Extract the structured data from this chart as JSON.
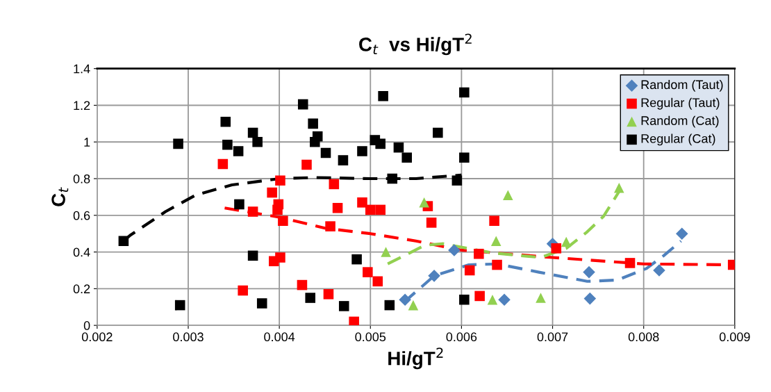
{
  "chart_data": {
    "type": "scatter",
    "title": "C$_{t}$  vs Hi/gT$^{2}$",
    "xlabel": "Hi/gT$^{2}$",
    "ylabel": "C$_{t}$",
    "xlim": [
      0.002,
      0.009
    ],
    "xticks": [
      0.002,
      0.003,
      0.004,
      0.005,
      0.006,
      0.007,
      0.008,
      0.009
    ],
    "ylim": [
      0,
      1.4
    ],
    "yticks": [
      0,
      0.2,
      0.4,
      0.6,
      0.8,
      1,
      1.2,
      1.4
    ],
    "grid": true,
    "legend": "top right",
    "series": [
      {
        "name": "Random (Taut)",
        "color": "#4f81bd",
        "marker": "diamond",
        "x": [
          0.00538,
          0.0057,
          0.00592,
          0.00647,
          0.007,
          0.0074,
          0.00741,
          0.00817,
          0.00842
        ],
        "values": [
          0.14,
          0.27,
          0.41,
          0.14,
          0.445,
          0.29,
          0.146,
          0.3,
          0.5
        ]
      },
      {
        "name": "Regular (Taut)",
        "color": "#ff0000",
        "marker": "square",
        "x": [
          0.00338,
          0.0043,
          0.00401,
          0.00392,
          0.00399,
          0.00398,
          0.00371,
          0.00404,
          0.00456,
          0.00401,
          0.00394,
          0.0036,
          0.00425,
          0.00454,
          0.0046,
          0.00464,
          0.00491,
          0.005,
          0.00511,
          0.00563,
          0.00567,
          0.00636,
          0.00619,
          0.00609,
          0.00639,
          0.00497,
          0.00508,
          0.00482,
          0.0062,
          0.00704,
          0.00785,
          0.00898
        ],
        "values": [
          0.88,
          0.876,
          0.79,
          0.724,
          0.66,
          0.63,
          0.62,
          0.57,
          0.54,
          0.37,
          0.35,
          0.19,
          0.22,
          0.17,
          0.77,
          0.64,
          0.67,
          0.63,
          0.63,
          0.65,
          0.56,
          0.57,
          0.39,
          0.3,
          0.33,
          0.29,
          0.24,
          0.02,
          0.16,
          0.42,
          0.34,
          0.33
        ]
      },
      {
        "name": "Random (Cat)",
        "color": "#92d050",
        "marker": "triangle",
        "x": [
          0.00517,
          0.00559,
          0.00547,
          0.00634,
          0.00638,
          0.00651,
          0.00687,
          0.00715,
          0.00773
        ],
        "values": [
          0.4,
          0.67,
          0.11,
          0.14,
          0.46,
          0.71,
          0.15,
          0.455,
          0.75
        ]
      },
      {
        "name": "Regular (Cat)",
        "color": "#000000",
        "marker": "square",
        "x": [
          0.00229,
          0.00289,
          0.00291,
          0.00341,
          0.00343,
          0.00355,
          0.00356,
          0.00371,
          0.00376,
          0.00371,
          0.00381,
          0.00426,
          0.00437,
          0.00442,
          0.00439,
          0.00451,
          0.00434,
          0.00514,
          0.00603,
          0.00574,
          0.00505,
          0.00511,
          0.00531,
          0.0054,
          0.00603,
          0.00491,
          0.0047,
          0.00524,
          0.00595,
          0.00485,
          0.00471,
          0.00521,
          0.00603
        ],
        "values": [
          0.46,
          0.99,
          0.11,
          1.11,
          0.985,
          0.95,
          0.66,
          1.05,
          1.0,
          0.38,
          0.12,
          1.205,
          1.1,
          1.03,
          1.0,
          0.94,
          0.15,
          1.25,
          1.27,
          1.05,
          1.01,
          0.99,
          0.97,
          0.915,
          0.915,
          0.95,
          0.9,
          0.8,
          0.79,
          0.36,
          0.105,
          0.11,
          0.14
        ]
      },
      {
        "type": "line",
        "color": "#4f81bd",
        "line_style": "dashed",
        "x": [
          0.00537,
          0.0057,
          0.00608,
          0.00639,
          0.00685,
          0.00738,
          0.00771,
          0.00803,
          0.00822,
          0.00841
        ],
        "values": [
          0.127,
          0.27,
          0.33,
          0.335,
          0.29,
          0.24,
          0.247,
          0.31,
          0.38,
          0.46
        ]
      },
      {
        "type": "line",
        "color": "#ff0000",
        "line_style": "dashed",
        "x": [
          0.0034,
          0.004,
          0.0045,
          0.005,
          0.0055,
          0.006,
          0.0065,
          0.007,
          0.008,
          0.009
        ],
        "values": [
          0.64,
          0.59,
          0.53,
          0.5,
          0.46,
          0.41,
          0.39,
          0.37,
          0.335,
          0.33
        ]
      },
      {
        "type": "line",
        "color": "#92d050",
        "line_style": "dashed",
        "x": [
          0.00519,
          0.0056,
          0.0058,
          0.00634,
          0.00687,
          0.00715,
          0.00738,
          0.00756,
          0.00773
        ],
        "values": [
          0.335,
          0.437,
          0.445,
          0.395,
          0.37,
          0.42,
          0.51,
          0.595,
          0.73
        ]
      },
      {
        "type": "line",
        "color": "#000000",
        "line_style": "dashed",
        "x": [
          0.00229,
          0.00236,
          0.00275,
          0.00308,
          0.00348,
          0.004,
          0.0044,
          0.005,
          0.0055,
          0.006
        ],
        "values": [
          0.46,
          0.49,
          0.62,
          0.71,
          0.766,
          0.8,
          0.806,
          0.8,
          0.8,
          0.82
        ]
      }
    ]
  }
}
